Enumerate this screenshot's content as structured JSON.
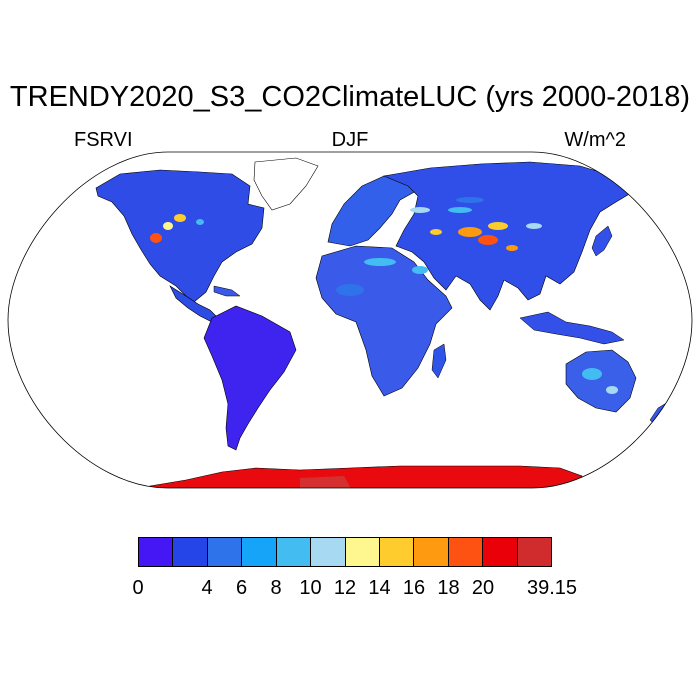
{
  "title": "TRENDY2020_S3_CO2ClimateLUC (yrs 2000-2018)",
  "left_label": "FSRVI",
  "center_label": "DJF",
  "right_label": "W/m^2",
  "colorbar": {
    "colors": [
      "#4617f5",
      "#2645e8",
      "#2f73ea",
      "#15a4f7",
      "#43bcf2",
      "#a8d9f2",
      "#fef790",
      "#fecc2c",
      "#fe9a10",
      "#fe5213",
      "#ea0009",
      "#d02b2d"
    ],
    "labels": [
      "0",
      "4",
      "6",
      "8",
      "10",
      "12",
      "14",
      "16",
      "18",
      "20",
      "39.15"
    ],
    "label_boundaries": [
      0,
      2,
      3,
      4,
      5,
      6,
      7,
      8,
      9,
      10,
      12
    ]
  },
  "map": {
    "projection": "Robinson",
    "ocean_color": "#ffffff",
    "coastline_color": "#000000"
  }
}
